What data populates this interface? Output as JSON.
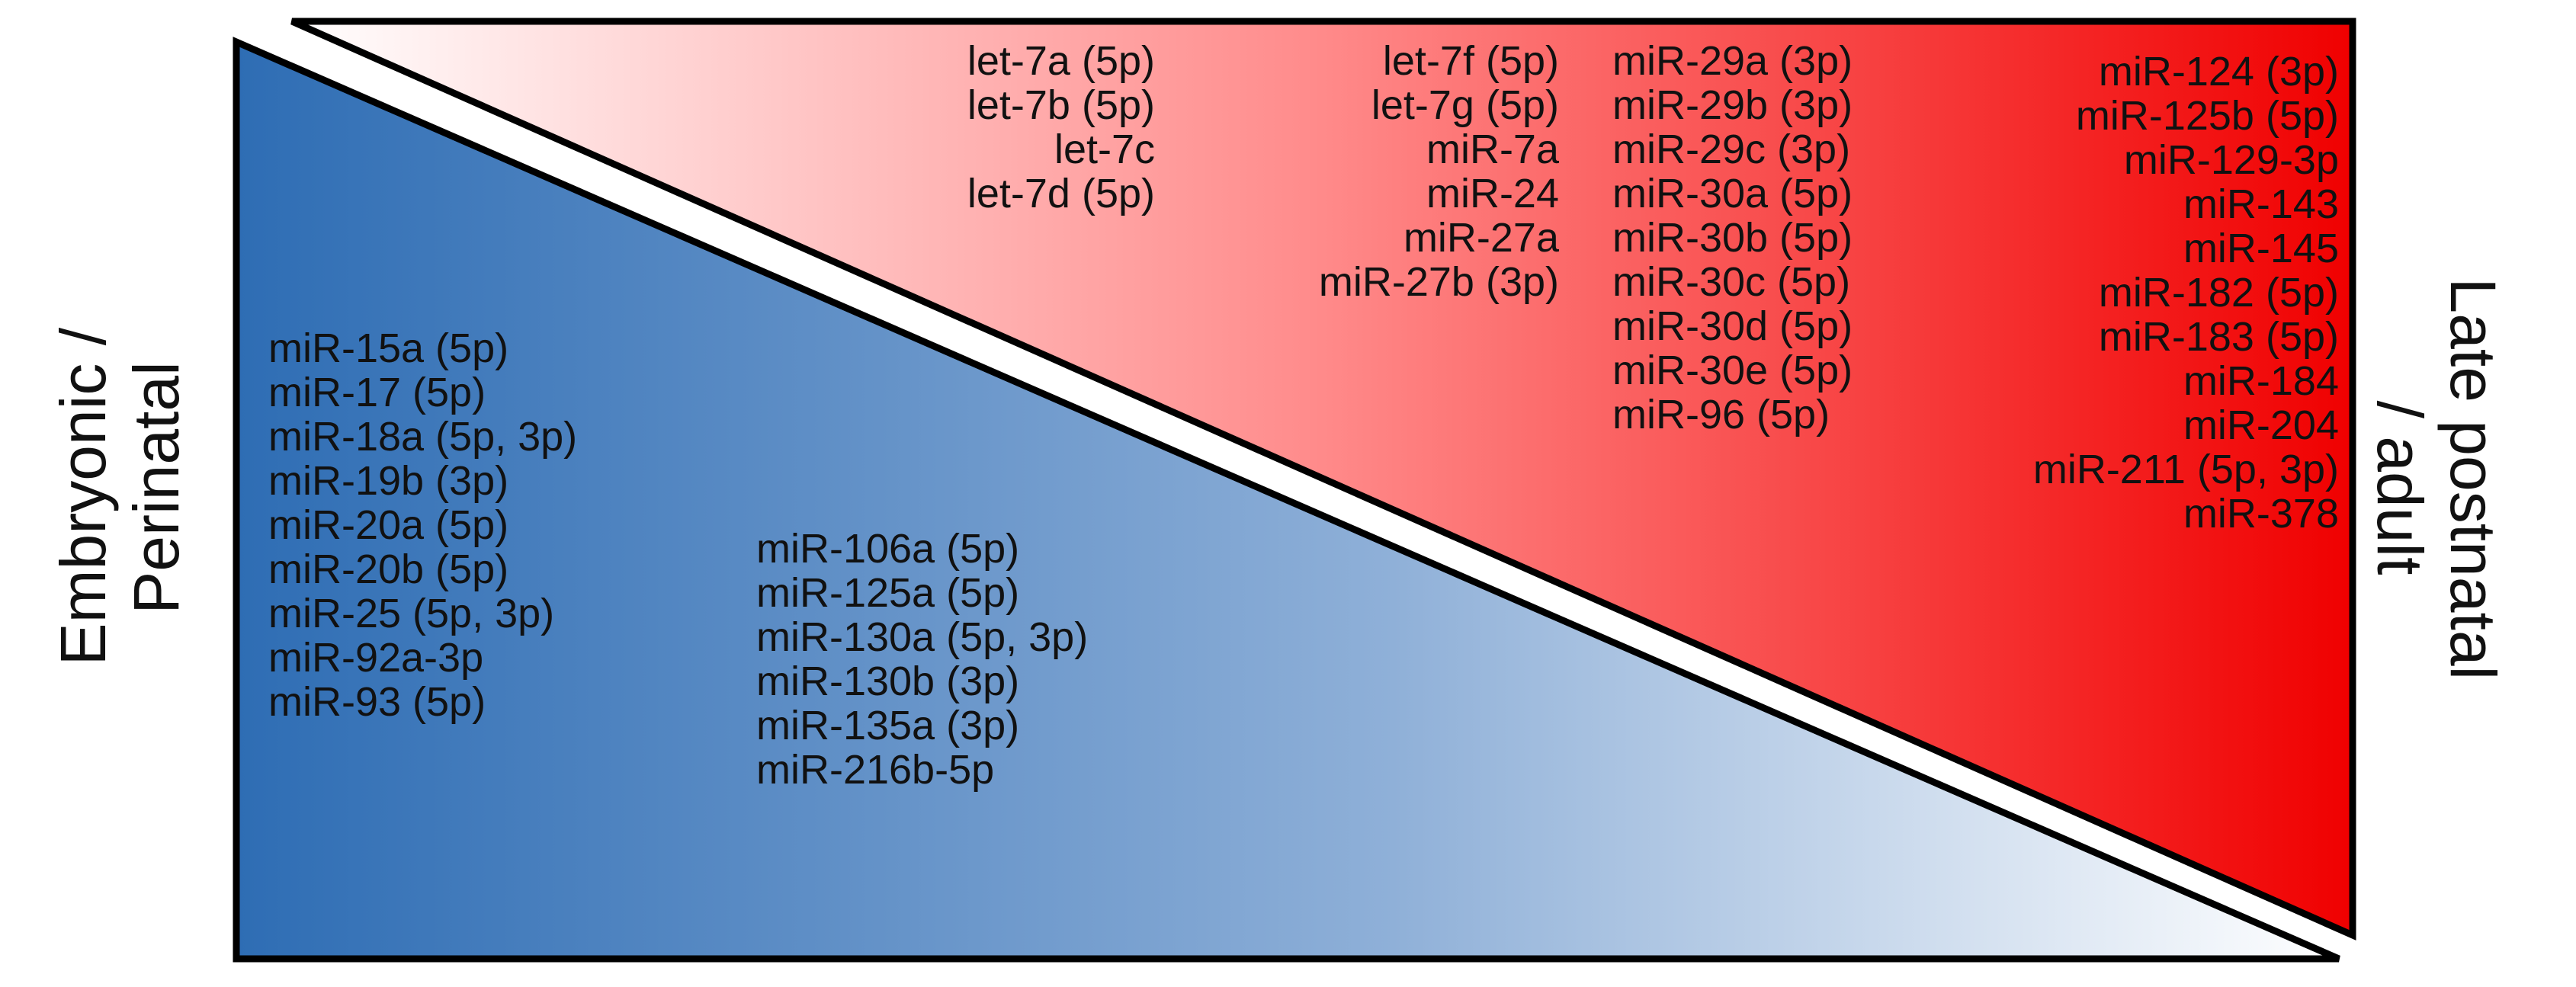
{
  "labels": {
    "left": [
      "Embryonic /",
      "Perinatal"
    ],
    "right": [
      "Late postnatal",
      "/ adult"
    ]
  },
  "colors": {
    "blue_strong": "#2e6db4",
    "blue_light": "#c8d7ec",
    "red_strong": "#f00000",
    "red_light": "#ffffff",
    "outline": "#000000"
  },
  "lists": {
    "embryonic_col1": [
      "miR-15a (5p)",
      "miR-17 (5p)",
      "miR-18a (5p, 3p)",
      "miR-19b (3p)",
      "miR-20a (5p)",
      "miR-20b (5p)",
      "miR-25 (5p, 3p)",
      "miR-92a-3p",
      "miR-93 (5p)"
    ],
    "embryonic_col2": [
      "miR-106a (5p)",
      "miR-125a (5p)",
      "miR-130a (5p, 3p)",
      "miR-130b (3p)",
      "miR-135a (3p)",
      "miR-216b-5p"
    ],
    "adult_col1": [
      "let-7a (5p)",
      "let-7b (5p)",
      "let-7c",
      "let-7d (5p)"
    ],
    "adult_col2": [
      "let-7f (5p)",
      "let-7g (5p)",
      "miR-7a",
      "miR-24",
      "miR-27a",
      "miR-27b (3p)"
    ],
    "adult_col3": [
      "miR-29a (3p)",
      "miR-29b (3p)",
      "miR-29c (3p)",
      "miR-30a (5p)",
      "miR-30b (5p)",
      "miR-30c (5p)",
      "miR-30d (5p)",
      "miR-30e (5p)",
      "miR-96 (5p)"
    ],
    "adult_col4": [
      "miR-124 (3p)",
      "miR-125b (5p)",
      "miR-129-3p",
      "miR-143",
      "miR-145",
      "miR-182 (5p)",
      "miR-183 (5p)",
      "miR-184",
      "miR-204",
      "miR-211 (5p, 3p)",
      "miR-378"
    ]
  }
}
